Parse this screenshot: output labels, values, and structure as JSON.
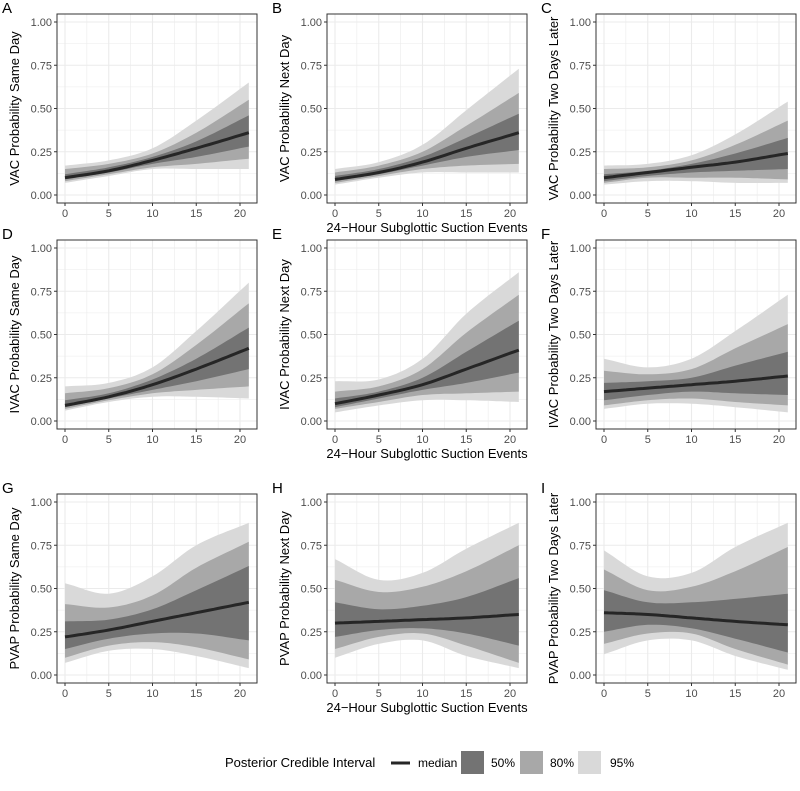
{
  "chart_data": {
    "type": "area",
    "x_axis": {
      "label": "24−Hour Subglottic Suction Events",
      "ticks": [
        0,
        5,
        10,
        15,
        20
      ],
      "range": [
        0,
        21
      ]
    },
    "y_axis": {
      "ticks": [
        "0.00",
        "0.25",
        "0.50",
        "0.75",
        "1.00"
      ],
      "range": [
        0,
        1
      ]
    },
    "x_samples": [
      0,
      5,
      10,
      15,
      21
    ],
    "colors": {
      "ci95": "#d9d9d9",
      "ci80": "#a8a8a8",
      "ci50": "#737373",
      "median": "#262626",
      "grid": "#ebebeb",
      "border": "#333333"
    },
    "legend": {
      "title": "Posterior Credible Interval",
      "items": [
        "median",
        "50%",
        "80%",
        "95%"
      ],
      "placement": "bottom"
    },
    "panels": [
      {
        "letter": "A",
        "ylabel": "VAC Probability Same Day",
        "median": [
          0.1,
          0.14,
          0.2,
          0.27,
          0.36
        ],
        "ci95": [
          [
            0.07,
            0.11,
            0.15,
            0.15,
            0.15
          ],
          [
            0.17,
            0.2,
            0.27,
            0.43,
            0.65
          ]
        ],
        "ci80": [
          [
            0.08,
            0.12,
            0.16,
            0.18,
            0.21
          ],
          [
            0.15,
            0.18,
            0.24,
            0.36,
            0.55
          ]
        ],
        "ci50": [
          [
            0.09,
            0.13,
            0.18,
            0.22,
            0.28
          ],
          [
            0.12,
            0.16,
            0.22,
            0.31,
            0.46
          ]
        ]
      },
      {
        "letter": "B",
        "ylabel": "VAC Probability Next Day",
        "median": [
          0.09,
          0.13,
          0.19,
          0.27,
          0.36
        ],
        "ci95": [
          [
            0.06,
            0.1,
            0.13,
            0.13,
            0.13
          ],
          [
            0.15,
            0.19,
            0.29,
            0.49,
            0.73
          ]
        ],
        "ci80": [
          [
            0.07,
            0.11,
            0.15,
            0.17,
            0.18
          ],
          [
            0.13,
            0.17,
            0.25,
            0.4,
            0.59
          ]
        ],
        "ci50": [
          [
            0.08,
            0.12,
            0.17,
            0.22,
            0.26
          ],
          [
            0.11,
            0.15,
            0.22,
            0.33,
            0.47
          ]
        ]
      },
      {
        "letter": "C",
        "ylabel": "VAC Probability Two Days Later",
        "median": [
          0.1,
          0.13,
          0.16,
          0.19,
          0.24
        ],
        "ci95": [
          [
            0.06,
            0.08,
            0.08,
            0.07,
            0.07
          ],
          [
            0.17,
            0.18,
            0.23,
            0.35,
            0.54
          ]
        ],
        "ci80": [
          [
            0.07,
            0.1,
            0.1,
            0.1,
            0.09
          ],
          [
            0.15,
            0.16,
            0.2,
            0.29,
            0.43
          ]
        ],
        "ci50": [
          [
            0.08,
            0.11,
            0.13,
            0.14,
            0.15
          ],
          [
            0.12,
            0.14,
            0.18,
            0.24,
            0.33
          ]
        ]
      },
      {
        "letter": "D",
        "ylabel": "IVAC Probability Same Day",
        "median": [
          0.09,
          0.14,
          0.21,
          0.3,
          0.42
        ],
        "ci95": [
          [
            0.06,
            0.11,
            0.14,
            0.14,
            0.13
          ],
          [
            0.2,
            0.22,
            0.31,
            0.52,
            0.8
          ]
        ],
        "ci80": [
          [
            0.07,
            0.12,
            0.16,
            0.18,
            0.2
          ],
          [
            0.16,
            0.19,
            0.27,
            0.44,
            0.68
          ]
        ],
        "ci50": [
          [
            0.08,
            0.13,
            0.18,
            0.23,
            0.3
          ],
          [
            0.12,
            0.16,
            0.24,
            0.36,
            0.54
          ]
        ]
      },
      {
        "letter": "E",
        "ylabel": "IVAC Probability Next Day",
        "median": [
          0.1,
          0.15,
          0.21,
          0.3,
          0.41
        ],
        "ci95": [
          [
            0.05,
            0.09,
            0.12,
            0.12,
            0.11
          ],
          [
            0.23,
            0.24,
            0.36,
            0.62,
            0.86
          ]
        ],
        "ci80": [
          [
            0.07,
            0.11,
            0.15,
            0.16,
            0.17
          ],
          [
            0.17,
            0.2,
            0.3,
            0.51,
            0.73
          ]
        ],
        "ci50": [
          [
            0.08,
            0.13,
            0.18,
            0.22,
            0.28
          ],
          [
            0.13,
            0.17,
            0.25,
            0.4,
            0.58
          ]
        ]
      },
      {
        "letter": "F",
        "ylabel": "IVAC Probability Two Days Later",
        "median": [
          0.17,
          0.19,
          0.21,
          0.23,
          0.26
        ],
        "ci95": [
          [
            0.07,
            0.1,
            0.1,
            0.08,
            0.05
          ],
          [
            0.36,
            0.31,
            0.36,
            0.52,
            0.73
          ]
        ],
        "ci80": [
          [
            0.09,
            0.12,
            0.13,
            0.11,
            0.09
          ],
          [
            0.29,
            0.27,
            0.3,
            0.42,
            0.56
          ]
        ],
        "ci50": [
          [
            0.12,
            0.15,
            0.17,
            0.16,
            0.15
          ],
          [
            0.22,
            0.23,
            0.25,
            0.32,
            0.4
          ]
        ]
      },
      {
        "letter": "G",
        "ylabel": "PVAP Probability Same Day",
        "median": [
          0.22,
          0.26,
          0.31,
          0.36,
          0.42
        ],
        "ci95": [
          [
            0.07,
            0.14,
            0.15,
            0.11,
            0.04
          ],
          [
            0.53,
            0.47,
            0.57,
            0.75,
            0.88
          ]
        ],
        "ci80": [
          [
            0.1,
            0.17,
            0.19,
            0.16,
            0.09
          ],
          [
            0.41,
            0.39,
            0.46,
            0.62,
            0.77
          ]
        ],
        "ci50": [
          [
            0.15,
            0.21,
            0.24,
            0.24,
            0.2
          ],
          [
            0.31,
            0.32,
            0.38,
            0.49,
            0.63
          ]
        ]
      },
      {
        "letter": "H",
        "ylabel": "PVAP Probability Next Day",
        "median": [
          0.3,
          0.31,
          0.32,
          0.33,
          0.35
        ],
        "ci95": [
          [
            0.1,
            0.18,
            0.2,
            0.11,
            0.04
          ],
          [
            0.67,
            0.55,
            0.59,
            0.73,
            0.88
          ]
        ],
        "ci80": [
          [
            0.15,
            0.22,
            0.24,
            0.17,
            0.07
          ],
          [
            0.55,
            0.48,
            0.51,
            0.6,
            0.75
          ]
        ],
        "ci50": [
          [
            0.22,
            0.26,
            0.27,
            0.24,
            0.17
          ],
          [
            0.42,
            0.38,
            0.4,
            0.45,
            0.56
          ]
        ]
      },
      {
        "letter": "I",
        "ylabel": "PVAP Probability Two Days Later",
        "median": [
          0.36,
          0.35,
          0.33,
          0.31,
          0.29
        ],
        "ci95": [
          [
            0.12,
            0.2,
            0.2,
            0.11,
            0.03
          ],
          [
            0.72,
            0.57,
            0.59,
            0.74,
            0.88
          ]
        ],
        "ci80": [
          [
            0.18,
            0.24,
            0.24,
            0.15,
            0.06
          ],
          [
            0.61,
            0.49,
            0.51,
            0.6,
            0.74
          ]
        ],
        "ci50": [
          [
            0.25,
            0.29,
            0.27,
            0.21,
            0.13
          ],
          [
            0.49,
            0.42,
            0.42,
            0.44,
            0.47
          ]
        ]
      }
    ]
  }
}
